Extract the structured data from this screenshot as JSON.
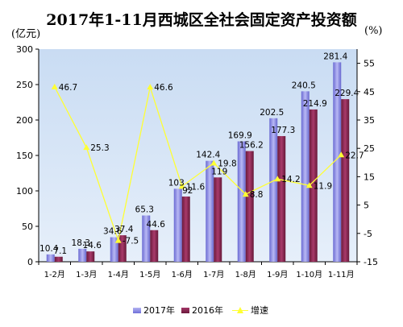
{
  "chart_data": {
    "type": "bar",
    "title": "2017年1-11月西城区全社会固定资产投资额",
    "y_left_unit": "(亿元)",
    "y_right_unit": "(%)",
    "categories": [
      "1-2月",
      "1-3月",
      "1-4月",
      "1-5月",
      "1-6月",
      "1-7月",
      "1-8月",
      "1-9月",
      "1-10月",
      "1-11月"
    ],
    "series": [
      {
        "name": "2017年",
        "kind": "bar",
        "axis": "left",
        "values": [
          10.4,
          18.3,
          34.6,
          65.3,
          103,
          142.4,
          169.9,
          202.5,
          240.5,
          281.4
        ],
        "labels": [
          "10.4",
          "18.3",
          "34.6",
          "65.3",
          "103",
          "142.4",
          "169.9",
          "202.5",
          "240.5",
          "281.4"
        ]
      },
      {
        "name": "2016年",
        "kind": "bar",
        "axis": "left",
        "values": [
          7.1,
          14.6,
          37.4,
          44.6,
          92,
          119,
          156.2,
          177.3,
          214.9,
          229.4
        ],
        "labels": [
          "7.1",
          "14.6",
          "37.4",
          "44.6",
          "92",
          "119",
          "156.2",
          "177.3",
          "214.9",
          "229.4"
        ]
      },
      {
        "name": "增速",
        "kind": "line",
        "axis": "right",
        "values": [
          46.7,
          25.3,
          -7.5,
          46.6,
          11.6,
          19.8,
          8.8,
          14.2,
          11.9,
          22.7
        ],
        "labels": [
          "46.7",
          "25.3",
          "-7.5",
          "46.6",
          "11.6",
          "19.8",
          "8.8",
          "14.2",
          "11.9",
          "22.7"
        ]
      }
    ],
    "y_left": {
      "min": 0,
      "max": 300,
      "ticks": [
        0,
        50,
        100,
        150,
        200,
        250,
        300
      ]
    },
    "y_right": {
      "min": -15,
      "max": 60,
      "ticks": [
        -15,
        -5,
        5,
        15,
        25,
        35,
        45,
        55
      ]
    },
    "grid": false,
    "legend_position": "bottom",
    "colors": {
      "2017": "#8c8ce8",
      "2016": "#8b2550",
      "growth": "#ffff33",
      "plot_bg": "#d4e4f6"
    }
  }
}
